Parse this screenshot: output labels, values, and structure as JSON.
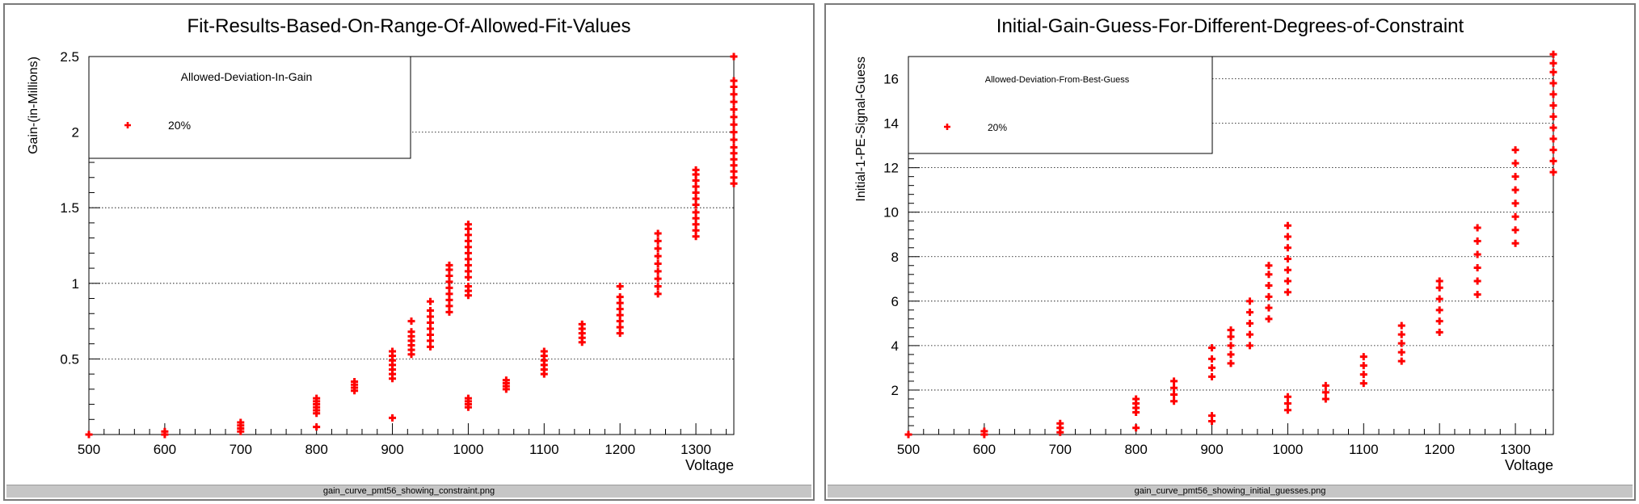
{
  "files": [
    "gain_curve_pmt56_showing_constraint.png",
    "gain_curve_pmt56_showing_initial_guesses.png"
  ],
  "colors": {
    "marker": "#ff0000",
    "grid": "#000000",
    "caption_bar": "#c6c6c6"
  },
  "chart_data": [
    {
      "type": "scatter",
      "title": "Fit-Results-Based-On-Range-Of-Allowed-Fit-Values",
      "xlabel": "Voltage",
      "ylabel": "Gain-(in-Millions)",
      "xlim": [
        500,
        1350
      ],
      "ylim": [
        0,
        2.5
      ],
      "xticks": [
        500,
        600,
        700,
        800,
        900,
        1000,
        1100,
        1200,
        1300
      ],
      "yticks": [
        0.5,
        1,
        1.5,
        2,
        2.5
      ],
      "ytick_labels": [
        "0.5",
        "1",
        "1.5",
        "2",
        "2.5"
      ],
      "grid": "horizontal dotted",
      "legend": {
        "title": "Allowed-Deviation-In-Gain",
        "entries": [
          "20%"
        ],
        "placement": "top-left"
      },
      "series": [
        {
          "name": "20%",
          "points": [
            [
              500,
              0.0
            ],
            [
              600,
              0.0
            ],
            [
              600,
              0.02
            ],
            [
              700,
              0.02
            ],
            [
              700,
              0.04
            ],
            [
              700,
              0.06
            ],
            [
              700,
              0.08
            ],
            [
              800,
              0.05
            ],
            [
              800,
              0.14
            ],
            [
              800,
              0.16
            ],
            [
              800,
              0.18
            ],
            [
              800,
              0.2
            ],
            [
              800,
              0.22
            ],
            [
              800,
              0.24
            ],
            [
              850,
              0.29
            ],
            [
              850,
              0.31
            ],
            [
              850,
              0.33
            ],
            [
              850,
              0.35
            ],
            [
              900,
              0.11
            ],
            [
              900,
              0.37
            ],
            [
              900,
              0.4
            ],
            [
              900,
              0.43
            ],
            [
              900,
              0.46
            ],
            [
              900,
              0.49
            ],
            [
              900,
              0.52
            ],
            [
              900,
              0.55
            ],
            [
              925,
              0.53
            ],
            [
              925,
              0.56
            ],
            [
              925,
              0.59
            ],
            [
              925,
              0.62
            ],
            [
              925,
              0.65
            ],
            [
              925,
              0.68
            ],
            [
              925,
              0.75
            ],
            [
              950,
              0.58
            ],
            [
              950,
              0.62
            ],
            [
              950,
              0.66
            ],
            [
              950,
              0.7
            ],
            [
              950,
              0.74
            ],
            [
              950,
              0.78
            ],
            [
              950,
              0.82
            ],
            [
              950,
              0.88
            ],
            [
              975,
              0.81
            ],
            [
              975,
              0.85
            ],
            [
              975,
              0.89
            ],
            [
              975,
              0.93
            ],
            [
              975,
              0.97
            ],
            [
              975,
              1.01
            ],
            [
              975,
              1.05
            ],
            [
              975,
              1.09
            ],
            [
              975,
              1.12
            ],
            [
              1000,
              0.18
            ],
            [
              1000,
              0.2
            ],
            [
              1000,
              0.22
            ],
            [
              1000,
              0.24
            ],
            [
              1000,
              0.92
            ],
            [
              1000,
              0.95
            ],
            [
              1000,
              0.98
            ],
            [
              1000,
              1.04
            ],
            [
              1000,
              1.08
            ],
            [
              1000,
              1.12
            ],
            [
              1000,
              1.16
            ],
            [
              1000,
              1.2
            ],
            [
              1000,
              1.24
            ],
            [
              1000,
              1.28
            ],
            [
              1000,
              1.32
            ],
            [
              1000,
              1.36
            ],
            [
              1000,
              1.39
            ],
            [
              1050,
              0.3
            ],
            [
              1050,
              0.32
            ],
            [
              1050,
              0.34
            ],
            [
              1050,
              0.36
            ],
            [
              1100,
              0.4
            ],
            [
              1100,
              0.43
            ],
            [
              1100,
              0.46
            ],
            [
              1100,
              0.49
            ],
            [
              1100,
              0.52
            ],
            [
              1100,
              0.55
            ],
            [
              1150,
              0.61
            ],
            [
              1150,
              0.64
            ],
            [
              1150,
              0.67
            ],
            [
              1150,
              0.7
            ],
            [
              1150,
              0.73
            ],
            [
              1200,
              0.67
            ],
            [
              1200,
              0.71
            ],
            [
              1200,
              0.75
            ],
            [
              1200,
              0.79
            ],
            [
              1200,
              0.83
            ],
            [
              1200,
              0.87
            ],
            [
              1200,
              0.91
            ],
            [
              1200,
              0.98
            ],
            [
              1250,
              0.93
            ],
            [
              1250,
              0.98
            ],
            [
              1250,
              1.03
            ],
            [
              1250,
              1.08
            ],
            [
              1250,
              1.13
            ],
            [
              1250,
              1.18
            ],
            [
              1250,
              1.23
            ],
            [
              1250,
              1.28
            ],
            [
              1250,
              1.33
            ],
            [
              1300,
              1.31
            ],
            [
              1300,
              1.35
            ],
            [
              1300,
              1.39
            ],
            [
              1300,
              1.43
            ],
            [
              1300,
              1.47
            ],
            [
              1300,
              1.52
            ],
            [
              1300,
              1.56
            ],
            [
              1300,
              1.6
            ],
            [
              1300,
              1.64
            ],
            [
              1300,
              1.68
            ],
            [
              1300,
              1.72
            ],
            [
              1300,
              1.75
            ],
            [
              1350,
              1.66
            ],
            [
              1350,
              1.7
            ],
            [
              1350,
              1.74
            ],
            [
              1350,
              1.78
            ],
            [
              1350,
              1.82
            ],
            [
              1350,
              1.86
            ],
            [
              1350,
              1.9
            ],
            [
              1350,
              1.95
            ],
            [
              1350,
              2.0
            ],
            [
              1350,
              2.05
            ],
            [
              1350,
              2.1
            ],
            [
              1350,
              2.15
            ],
            [
              1350,
              2.2
            ],
            [
              1350,
              2.25
            ],
            [
              1350,
              2.3
            ],
            [
              1350,
              2.34
            ],
            [
              1350,
              2.5
            ]
          ]
        }
      ]
    },
    {
      "type": "scatter",
      "title": "Initial-Gain-Guess-For-Different-Degrees-of-Constraint",
      "xlabel": "Voltage",
      "ylabel": "Initial-1-PE-Signal-Guess",
      "xlim": [
        500,
        1350
      ],
      "ylim": [
        0,
        17
      ],
      "xticks": [
        500,
        600,
        700,
        800,
        900,
        1000,
        1100,
        1200,
        1300
      ],
      "yticks": [
        2,
        4,
        6,
        8,
        10,
        12,
        14,
        16
      ],
      "ytick_labels": [
        "2",
        "4",
        "6",
        "8",
        "10",
        "12",
        "14",
        "16"
      ],
      "grid": "horizontal dotted",
      "legend": {
        "title": "Allowed-Deviation-From-Best-Guess",
        "entries": [
          "20%"
        ],
        "placement": "top-left"
      },
      "series": [
        {
          "name": "20%",
          "points": [
            [
              500,
              0.0
            ],
            [
              600,
              0.0
            ],
            [
              600,
              0.15
            ],
            [
              700,
              0.1
            ],
            [
              700,
              0.3
            ],
            [
              700,
              0.5
            ],
            [
              800,
              0.3
            ],
            [
              800,
              1.0
            ],
            [
              800,
              1.2
            ],
            [
              800,
              1.4
            ],
            [
              800,
              1.6
            ],
            [
              850,
              1.5
            ],
            [
              850,
              1.8
            ],
            [
              850,
              2.1
            ],
            [
              850,
              2.4
            ],
            [
              900,
              0.6
            ],
            [
              900,
              0.85
            ],
            [
              900,
              2.6
            ],
            [
              900,
              3.0
            ],
            [
              900,
              3.4
            ],
            [
              900,
              3.9
            ],
            [
              925,
              3.2
            ],
            [
              925,
              3.6
            ],
            [
              925,
              4.0
            ],
            [
              925,
              4.4
            ],
            [
              925,
              4.7
            ],
            [
              950,
              4.0
            ],
            [
              950,
              4.5
            ],
            [
              950,
              5.0
            ],
            [
              950,
              5.5
            ],
            [
              950,
              6.0
            ],
            [
              975,
              5.2
            ],
            [
              975,
              5.7
            ],
            [
              975,
              6.2
            ],
            [
              975,
              6.7
            ],
            [
              975,
              7.2
            ],
            [
              975,
              7.6
            ],
            [
              1000,
              1.1
            ],
            [
              1000,
              1.4
            ],
            [
              1000,
              1.7
            ],
            [
              1000,
              6.4
            ],
            [
              1000,
              6.9
            ],
            [
              1000,
              7.4
            ],
            [
              1000,
              7.9
            ],
            [
              1000,
              8.4
            ],
            [
              1000,
              8.9
            ],
            [
              1000,
              9.4
            ],
            [
              1050,
              1.6
            ],
            [
              1050,
              1.9
            ],
            [
              1050,
              2.2
            ],
            [
              1100,
              2.3
            ],
            [
              1100,
              2.7
            ],
            [
              1100,
              3.1
            ],
            [
              1100,
              3.5
            ],
            [
              1150,
              3.3
            ],
            [
              1150,
              3.7
            ],
            [
              1150,
              4.1
            ],
            [
              1150,
              4.5
            ],
            [
              1150,
              4.9
            ],
            [
              1200,
              4.6
            ],
            [
              1200,
              5.1
            ],
            [
              1200,
              5.6
            ],
            [
              1200,
              6.1
            ],
            [
              1200,
              6.6
            ],
            [
              1200,
              6.9
            ],
            [
              1250,
              6.3
            ],
            [
              1250,
              6.9
            ],
            [
              1250,
              7.5
            ],
            [
              1250,
              8.1
            ],
            [
              1250,
              8.7
            ],
            [
              1250,
              9.3
            ],
            [
              1300,
              8.6
            ],
            [
              1300,
              9.2
            ],
            [
              1300,
              9.8
            ],
            [
              1300,
              10.4
            ],
            [
              1300,
              11.0
            ],
            [
              1300,
              11.6
            ],
            [
              1300,
              12.2
            ],
            [
              1300,
              12.8
            ],
            [
              1350,
              11.8
            ],
            [
              1350,
              12.3
            ],
            [
              1350,
              12.8
            ],
            [
              1350,
              13.3
            ],
            [
              1350,
              13.8
            ],
            [
              1350,
              14.3
            ],
            [
              1350,
              14.8
            ],
            [
              1350,
              15.3
            ],
            [
              1350,
              15.8
            ],
            [
              1350,
              16.3
            ],
            [
              1350,
              16.7
            ],
            [
              1350,
              17.1
            ]
          ]
        }
      ]
    }
  ]
}
